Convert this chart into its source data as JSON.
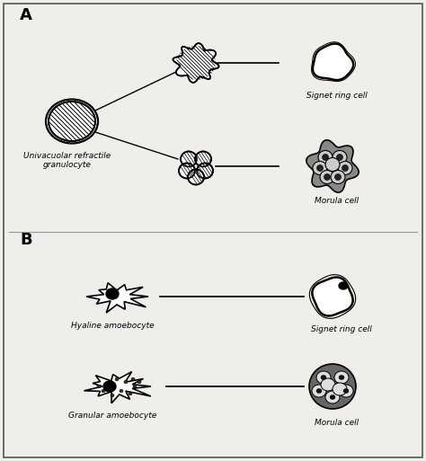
{
  "bg_color": "#f0eeea",
  "border_color": "#555555",
  "section_A_label": "A",
  "section_B_label": "B",
  "label_univacuolar": "Univacuolar refractile\ngranulocyte",
  "label_hyaline": "Hyaline amoebocyte",
  "label_granular": "Granular amoebocyte",
  "label_signet_A": "Signet ring cell",
  "label_morula_A": "Morula cell",
  "label_signet_B": "Signet ring cell",
  "label_morula_B": "Morula cell",
  "figsize": [
    4.74,
    5.13
  ],
  "dpi": 100
}
